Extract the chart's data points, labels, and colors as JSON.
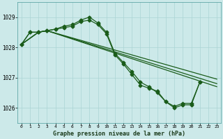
{
  "bg_color": "#cce9e9",
  "grid_color": "#aad4d4",
  "line_color": "#1a5c1a",
  "marker_color": "#1a5c1a",
  "title": "Graphe pression niveau de la mer (hPa)",
  "ylim": [
    1025.5,
    1029.5
  ],
  "xlim": [
    -0.5,
    23.5
  ],
  "yticks": [
    1026,
    1027,
    1028,
    1029
  ],
  "xticks": [
    0,
    1,
    2,
    3,
    4,
    5,
    6,
    7,
    8,
    9,
    10,
    11,
    12,
    13,
    14,
    15,
    16,
    17,
    18,
    19,
    20,
    21,
    22,
    23
  ],
  "curve1_x": [
    0,
    1,
    2,
    3,
    4,
    5,
    6,
    7,
    8,
    9,
    10,
    11,
    12,
    13,
    14,
    15,
    16,
    17,
    18,
    19,
    20,
    21
  ],
  "curve1_y": [
    1028.1,
    1028.5,
    1028.5,
    1028.55,
    1028.6,
    1028.65,
    1028.7,
    1028.85,
    1028.9,
    1028.75,
    1028.45,
    1027.75,
    1027.45,
    1027.1,
    1026.75,
    1026.65,
    1026.55,
    1026.2,
    1026.05,
    1026.15,
    1026.15,
    1026.85
  ],
  "curve2_x": [
    0,
    1,
    2,
    3,
    4,
    5,
    6,
    7,
    8,
    9,
    10,
    11,
    12,
    13,
    14,
    15,
    16,
    17,
    18,
    19,
    20,
    21
  ],
  "curve2_y": [
    1028.1,
    1028.5,
    1028.5,
    1028.55,
    1028.6,
    1028.7,
    1028.75,
    1028.9,
    1029.0,
    1028.8,
    1028.5,
    1027.8,
    1027.5,
    1027.2,
    1026.85,
    1026.7,
    1026.5,
    1026.2,
    1026.0,
    1026.1,
    1026.1,
    1026.85
  ],
  "line1_x": [
    0,
    2,
    3,
    23
  ],
  "line1_y": [
    1028.1,
    1028.5,
    1028.55,
    1026.95
  ],
  "line2_x": [
    0,
    2,
    3,
    23
  ],
  "line2_y": [
    1028.1,
    1028.5,
    1028.55,
    1026.8
  ],
  "line3_x": [
    0,
    2,
    3,
    23
  ],
  "line3_y": [
    1028.1,
    1028.5,
    1028.55,
    1026.7
  ]
}
